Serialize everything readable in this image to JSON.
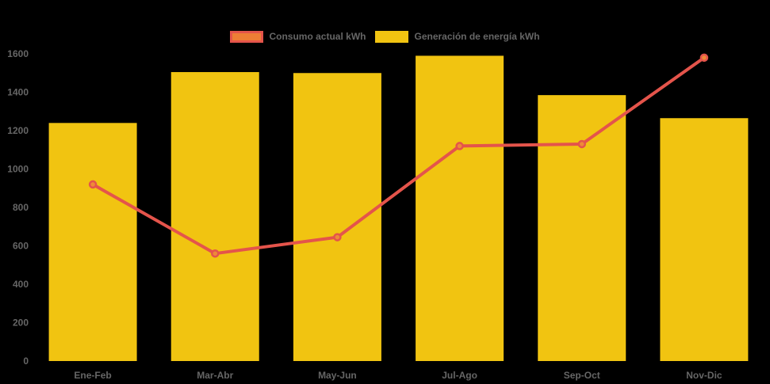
{
  "background_color": "#000000",
  "axis_text_color": "#666666",
  "legend": {
    "text_color": "#666666",
    "items": [
      {
        "label": "Consumo actual kWh",
        "swatch_fill": "#ee7e35",
        "swatch_border": "#e4544b"
      },
      {
        "label": "Generación de energía kWh",
        "swatch_fill": "#f1c411",
        "swatch_border": "#f1c411"
      }
    ]
  },
  "chart_data": {
    "type": "combo-bar-line",
    "categories": [
      "Ene-Feb",
      "Mar-Abr",
      "May-Jun",
      "Jul-Ago",
      "Sep-Oct",
      "Nov-Dic"
    ],
    "series": [
      {
        "name": "Consumo actual kWh",
        "type": "line",
        "values": [
          920,
          560,
          645,
          1120,
          1130,
          1580
        ],
        "color": "#e4544b",
        "marker_color": "#ee8a38",
        "line_width": 4
      },
      {
        "name": "Generación de energía kWh",
        "type": "bar",
        "values": [
          1240,
          1505,
          1500,
          1590,
          1385,
          1265
        ],
        "color": "#f1c411"
      }
    ],
    "ylabel": "",
    "xlabel": "",
    "ylim": [
      0,
      1600
    ],
    "ytick_step": 200,
    "ytick_labels": [
      "0",
      "200",
      "400",
      "600",
      "800",
      "1000",
      "1200",
      "1400",
      "1600"
    ],
    "grid": false,
    "legend_position": "top"
  }
}
